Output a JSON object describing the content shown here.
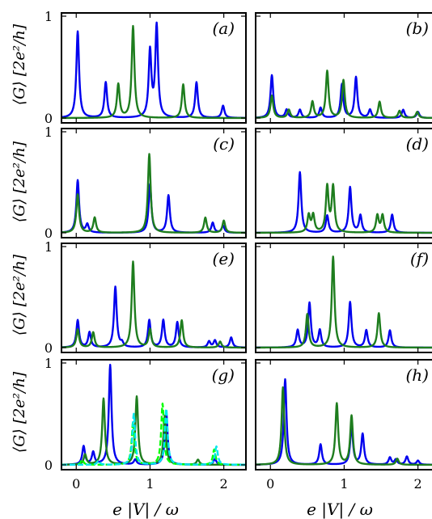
{
  "figure": {
    "ylabel": "⟨G⟩ [2e²/h]",
    "xlabel": "e |V| / ω",
    "xticks": [
      "0",
      "1",
      "2"
    ],
    "yticks": [
      "0",
      "1"
    ]
  },
  "chart_data": [
    {
      "type": "line",
      "panel": "(a)",
      "xlim": [
        -0.2,
        2.3
      ],
      "ylim": [
        0,
        1
      ],
      "series": [
        {
          "color": "#0000ee",
          "style": "solid",
          "peaks": [
            [
              0.02,
              0.85
            ],
            [
              0.4,
              0.35
            ],
            [
              1.0,
              0.65
            ],
            [
              1.09,
              0.9
            ],
            [
              1.63,
              0.35
            ],
            [
              1.99,
              0.12
            ]
          ]
        },
        {
          "color": "#1e7d1e",
          "style": "solid",
          "peaks": [
            [
              0.57,
              0.33
            ],
            [
              0.77,
              0.9
            ],
            [
              1.45,
              0.33
            ]
          ]
        }
      ]
    },
    {
      "type": "line",
      "panel": "(b)",
      "xlim": [
        -0.2,
        2.3
      ],
      "ylim": [
        0,
        1
      ],
      "series": [
        {
          "color": "#0000ee",
          "style": "solid",
          "peaks": [
            [
              0.02,
              0.42
            ],
            [
              0.22,
              0.08
            ],
            [
              0.4,
              0.08
            ],
            [
              0.68,
              0.1
            ],
            [
              0.97,
              0.33
            ],
            [
              1.16,
              0.4
            ],
            [
              1.35,
              0.08
            ],
            [
              1.8,
              0.08
            ],
            [
              2.0,
              0.06
            ]
          ]
        },
        {
          "color": "#1e7d1e",
          "style": "solid",
          "peaks": [
            [
              0.02,
              0.22
            ],
            [
              0.25,
              0.08
            ],
            [
              0.57,
              0.16
            ],
            [
              0.77,
              0.46
            ],
            [
              0.99,
              0.37
            ],
            [
              1.48,
              0.16
            ],
            [
              1.75,
              0.07
            ],
            [
              1.99,
              0.06
            ]
          ]
        }
      ]
    },
    {
      "type": "line",
      "panel": "(c)",
      "xlim": [
        -0.2,
        2.3
      ],
      "ylim": [
        0,
        1
      ],
      "series": [
        {
          "color": "#0000ee",
          "style": "solid",
          "peaks": [
            [
              0.02,
              0.52
            ],
            [
              0.15,
              0.08
            ],
            [
              1.0,
              0.48
            ],
            [
              1.25,
              0.37
            ],
            [
              1.85,
              0.1
            ],
            [
              1.99,
              0.07
            ]
          ]
        },
        {
          "color": "#1e7d1e",
          "style": "solid",
          "peaks": [
            [
              0.02,
              0.38
            ],
            [
              0.25,
              0.15
            ],
            [
              0.99,
              0.78
            ],
            [
              1.75,
              0.15
            ],
            [
              2.0,
              0.12
            ]
          ]
        }
      ]
    },
    {
      "type": "line",
      "panel": "(d)",
      "xlim": [
        -0.2,
        2.3
      ],
      "ylim": [
        0,
        1
      ],
      "series": [
        {
          "color": "#0000ee",
          "style": "solid",
          "peaks": [
            [
              0.4,
              0.6
            ],
            [
              0.77,
              0.17
            ],
            [
              1.08,
              0.45
            ],
            [
              1.22,
              0.17
            ],
            [
              1.65,
              0.18
            ]
          ]
        },
        {
          "color": "#1e7d1e",
          "style": "solid",
          "peaks": [
            [
              0.52,
              0.17
            ],
            [
              0.58,
              0.17
            ],
            [
              0.77,
              0.45
            ],
            [
              0.85,
              0.45
            ],
            [
              1.45,
              0.17
            ],
            [
              1.52,
              0.17
            ]
          ]
        }
      ]
    },
    {
      "type": "line",
      "panel": "(e)",
      "xlim": [
        -0.2,
        2.3
      ],
      "ylim": [
        0,
        1
      ],
      "series": [
        {
          "color": "#0000ee",
          "style": "solid",
          "peaks": [
            [
              0.02,
              0.27
            ],
            [
              0.18,
              0.15
            ],
            [
              0.53,
              0.6
            ],
            [
              0.62,
              0.04
            ],
            [
              0.99,
              0.27
            ],
            [
              1.18,
              0.27
            ],
            [
              1.37,
              0.25
            ],
            [
              1.8,
              0.06
            ],
            [
              1.88,
              0.07
            ],
            [
              2.1,
              0.1
            ]
          ]
        },
        {
          "color": "#1e7d1e",
          "style": "solid",
          "peaks": [
            [
              0.02,
              0.18
            ],
            [
              0.23,
              0.15
            ],
            [
              0.77,
              0.85
            ],
            [
              1.0,
              0.18
            ],
            [
              1.43,
              0.27
            ],
            [
              1.95,
              0.06
            ]
          ]
        }
      ]
    },
    {
      "type": "line",
      "panel": "(f)",
      "xlim": [
        -0.2,
        2.3
      ],
      "ylim": [
        0,
        1
      ],
      "series": [
        {
          "color": "#0000ee",
          "style": "solid",
          "peaks": [
            [
              0.37,
              0.17
            ],
            [
              0.53,
              0.44
            ],
            [
              0.67,
              0.17
            ],
            [
              1.08,
              0.45
            ],
            [
              1.3,
              0.17
            ],
            [
              1.62,
              0.17
            ]
          ]
        },
        {
          "color": "#1e7d1e",
          "style": "solid",
          "peaks": [
            [
              0.5,
              0.33
            ],
            [
              0.85,
              0.9
            ],
            [
              1.47,
              0.34
            ]
          ]
        }
      ]
    },
    {
      "type": "line",
      "panel": "(g)",
      "xlim": [
        -0.2,
        2.3
      ],
      "ylim": [
        0,
        1
      ],
      "series": [
        {
          "color": "#0000ee",
          "style": "solid",
          "peaks": [
            [
              0.1,
              0.18
            ],
            [
              0.23,
              0.12
            ],
            [
              0.46,
              0.98
            ],
            [
              0.8,
              0.05
            ],
            [
              1.22,
              0.52
            ],
            [
              1.88,
              0.06
            ]
          ]
        },
        {
          "color": "#1e7d1e",
          "style": "solid",
          "peaks": [
            [
              0.12,
              0.1
            ],
            [
              0.37,
              0.65
            ],
            [
              0.82,
              0.67
            ],
            [
              1.2,
              0.48
            ],
            [
              1.65,
              0.05
            ]
          ]
        },
        {
          "color": "#00ff00",
          "style": "dashed",
          "peaks": [
            [
              0.08,
              0.05
            ],
            [
              0.77,
              0.42
            ],
            [
              1.17,
              0.6
            ],
            [
              1.87,
              0.15
            ]
          ]
        },
        {
          "color": "#00e5ee",
          "style": "dashed",
          "peaks": [
            [
              0.78,
              0.5
            ],
            [
              1.22,
              0.55
            ],
            [
              1.9,
              0.18
            ],
            [
              0.3,
              0.04
            ]
          ]
        }
      ]
    },
    {
      "type": "line",
      "panel": "(h)",
      "xlim": [
        -0.2,
        2.3
      ],
      "ylim": [
        0,
        1
      ],
      "series": [
        {
          "color": "#0000ee",
          "style": "solid",
          "peaks": [
            [
              0.2,
              0.84
            ],
            [
              0.68,
              0.2
            ],
            [
              1.1,
              0.38
            ],
            [
              1.25,
              0.3
            ],
            [
              1.62,
              0.07
            ],
            [
              1.7,
              0.05
            ],
            [
              1.85,
              0.08
            ],
            [
              2.0,
              0.04
            ]
          ]
        },
        {
          "color": "#1e7d1e",
          "style": "solid",
          "peaks": [
            [
              0.17,
              0.76
            ],
            [
              0.9,
              0.6
            ],
            [
              1.1,
              0.48
            ],
            [
              1.72,
              0.06
            ]
          ]
        }
      ]
    }
  ]
}
